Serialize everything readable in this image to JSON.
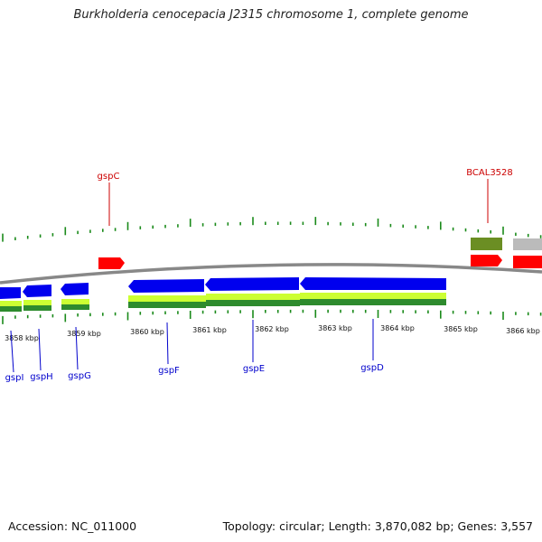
{
  "title": "Burkholderia cenocepacia J2315 chromosome 1, complete genome",
  "footer": {
    "accession": "Accession: NC_011000",
    "topology": "Topology: circular; Length: 3,870,082 bp; Genes: 3,557"
  },
  "colors": {
    "forward_gene": "#ff0000",
    "reverse_gene": "#0000ee",
    "other_gene": "#bbbbbb",
    "forward_cds": "#6b8e23",
    "reverse_cds_light": "#ccff33",
    "reverse_cds_dark": "#2e8b2e",
    "ticks": "#1a8a1a",
    "backbone": "#888888"
  },
  "kbp_labels": [
    "3858 kbp",
    "3859 kbp",
    "3860 kbp",
    "3861 kbp",
    "3862 kbp",
    "3863 kbp",
    "3864 kbp",
    "3865 kbp",
    "3866 kbp"
  ],
  "forward_labels": [
    "gspC",
    "BCAL3528"
  ],
  "reverse_labels": [
    "gspI",
    "gspH",
    "gspG",
    "gspF",
    "gspE",
    "gspD"
  ]
}
